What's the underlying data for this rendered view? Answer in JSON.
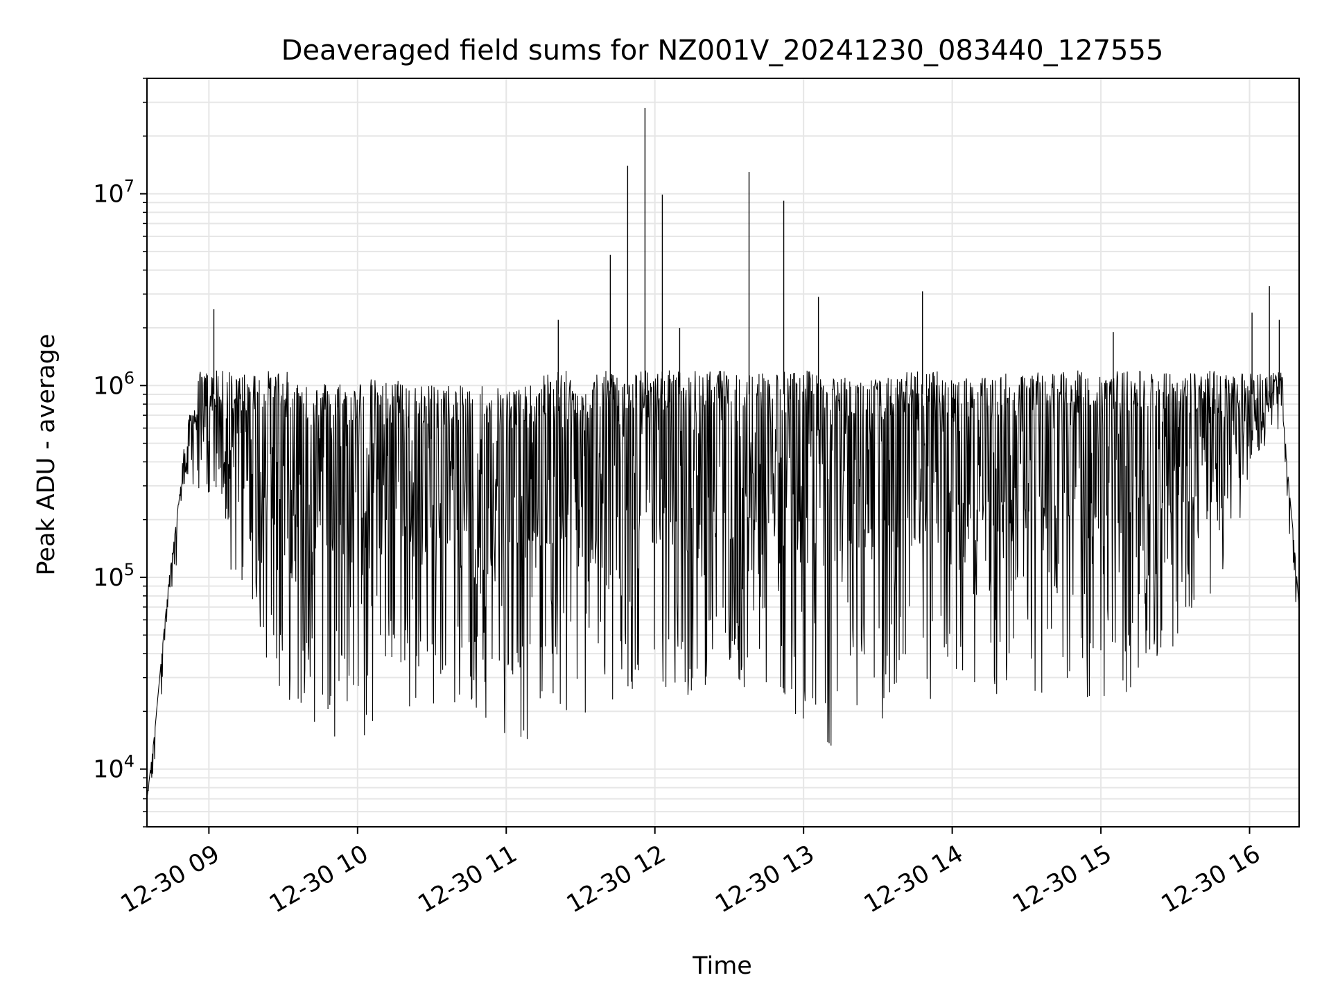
{
  "chart_data": {
    "type": "line",
    "title": "Deaveraged field sums for NZ001V_20241230_083440_127555",
    "xlabel": "Time",
    "ylabel": "Peak ADU - average",
    "y_scale": "log",
    "ylim": [
      5000,
      40000000
    ],
    "xlim": [
      "12-30 08:35",
      "12-30 16:20"
    ],
    "grid": true,
    "line_color": "#000000",
    "grid_color": "#e6e6e6",
    "x_ticks": [
      "12-30 09",
      "12-30 10",
      "12-30 11",
      "12-30 12",
      "12-30 13",
      "12-30 14",
      "12-30 15",
      "12-30 16"
    ],
    "y_ticks": [
      {
        "value": 10000,
        "base": "10",
        "exp": "4"
      },
      {
        "value": 100000,
        "base": "10",
        "exp": "5"
      },
      {
        "value": 1000000,
        "base": "10",
        "exp": "6"
      },
      {
        "value": 10000000,
        "base": "10",
        "exp": "7"
      }
    ],
    "series": [
      {
        "x": [
          "12-30 08:35",
          "12-30 08:38",
          "12-30 08:41",
          "12-30 08:44",
          "12-30 08:47",
          "12-30 08:50",
          "12-30 08:53",
          "12-30 08:55",
          "12-30 09:02",
          "12-30 09:09",
          "12-30 09:15",
          "12-30 09:22",
          "12-30 09:29",
          "12-30 09:36",
          "12-30 09:43",
          "12-30 09:50",
          "12-30 09:57",
          "12-30 10:04",
          "12-30 10:11",
          "12-30 10:18",
          "12-30 10:25",
          "12-30 10:32",
          "12-30 10:39",
          "12-30 10:46",
          "12-30 10:53",
          "12-30 11:00",
          "12-30 11:07",
          "12-30 11:14",
          "12-30 11:21",
          "12-30 11:28",
          "12-30 11:35",
          "12-30 11:42",
          "12-30 11:49",
          "12-30 11:56",
          "12-30 12:03",
          "12-30 12:10",
          "12-30 12:17",
          "12-30 12:24",
          "12-30 12:31",
          "12-30 12:38",
          "12-30 12:45",
          "12-30 12:52",
          "12-30 12:59",
          "12-30 13:06",
          "12-30 13:13",
          "12-30 13:20",
          "12-30 13:27",
          "12-30 13:34",
          "12-30 13:41",
          "12-30 13:48",
          "12-30 13:55",
          "12-30 14:02",
          "12-30 14:09",
          "12-30 14:16",
          "12-30 14:23",
          "12-30 14:30",
          "12-30 14:37",
          "12-30 14:44",
          "12-30 14:51",
          "12-30 14:58",
          "12-30 15:05",
          "12-30 15:12",
          "12-30 15:19",
          "12-30 15:26",
          "12-30 15:33",
          "12-30 15:40",
          "12-30 15:47",
          "12-30 15:54",
          "12-30 16:01",
          "12-30 16:08",
          "12-30 16:12",
          "12-30 16:15",
          "12-30 16:18",
          "12-30 16:20"
        ],
        "values": [
          7000,
          15000,
          40000,
          100000,
          200000,
          500000,
          800000,
          1000000,
          2500000,
          1400000,
          1600000,
          1200000,
          1300000,
          1100000,
          1000000,
          1100000,
          1000000,
          1100000,
          1050000,
          1100000,
          1000000,
          1050000,
          1000000,
          1000000,
          1050000,
          1000000,
          1000000,
          1000000,
          2200000,
          1000000,
          1000000,
          4800000,
          14000000,
          28000000,
          9900000,
          2000000,
          1200000,
          1500000,
          1300000,
          13000000,
          1200000,
          9200000,
          1100000,
          2900000,
          1100000,
          1100000,
          1100000,
          1100000,
          1100000,
          3100000,
          1100000,
          1100000,
          1100000,
          1100000,
          1200000,
          1150000,
          1200000,
          1200000,
          1200000,
          1300000,
          1900000,
          1300000,
          1300000,
          1300000,
          1400000,
          1400000,
          1500000,
          1600000,
          2400000,
          3300000,
          2200000,
          400000,
          150000,
          70000
        ],
        "lows": [
          7000,
          15000,
          40000,
          100000,
          200000,
          300000,
          300000,
          300000,
          200000,
          100000,
          80000,
          40000,
          25000,
          20000,
          17000,
          15000,
          13000,
          13000,
          16000,
          18000,
          20000,
          22000,
          20000,
          20000,
          17000,
          15000,
          13000,
          18000,
          20000,
          18000,
          17000,
          18000,
          20000,
          40000,
          18000,
          20000,
          25000,
          30000,
          20000,
          25000,
          20000,
          22000,
          18000,
          15000,
          12500,
          17000,
          18000,
          15000,
          17000,
          18000,
          20000,
          25000,
          25000,
          20000,
          25000,
          25000,
          22000,
          23000,
          25000,
          20000,
          22000,
          24000,
          30000,
          40000,
          40000,
          60000,
          80000,
          150000,
          400000,
          500000,
          600000,
          400000,
          150000,
          70000
        ]
      }
    ]
  }
}
